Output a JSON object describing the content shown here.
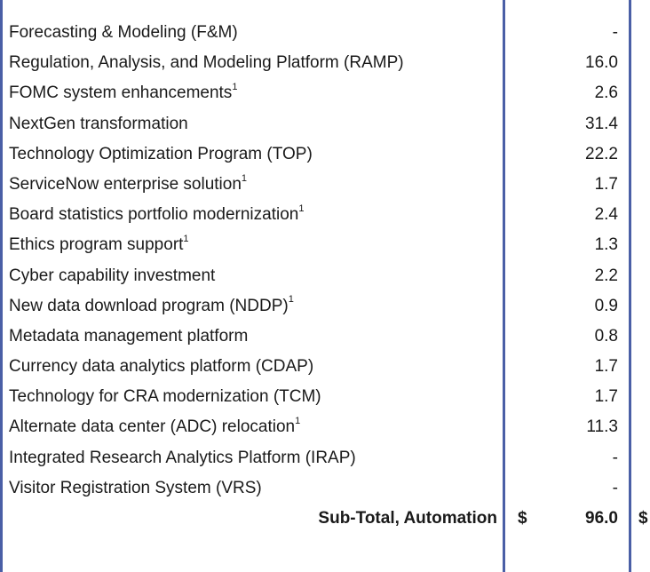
{
  "rows": [
    {
      "label": "Forecasting & Modeling (F&M)",
      "sup": "",
      "value": "-"
    },
    {
      "label": "Regulation, Analysis, and Modeling Platform (RAMP)",
      "sup": "",
      "value": "16.0"
    },
    {
      "label": "FOMC system enhancements",
      "sup": "1",
      "value": "2.6"
    },
    {
      "label": "NextGen transformation",
      "sup": "",
      "value": "31.4"
    },
    {
      "label": "Technology Optimization Program (TOP)",
      "sup": "",
      "value": "22.2"
    },
    {
      "label": "ServiceNow enterprise solution",
      "sup": "1",
      "value": "1.7"
    },
    {
      "label": "Board statistics portfolio modernization",
      "sup": "1",
      "value": "2.4"
    },
    {
      "label": "Ethics program support",
      "sup": "1",
      "value": "1.3"
    },
    {
      "label": "Cyber capability investment",
      "sup": "",
      "value": "2.2"
    },
    {
      "label": "New data download program (NDDP)",
      "sup": "1",
      "value": "0.9"
    },
    {
      "label": "Metadata management platform",
      "sup": "",
      "value": "0.8"
    },
    {
      "label": "Currency data analytics platform (CDAP)",
      "sup": "",
      "value": "1.7"
    },
    {
      "label": "Technology for CRA modernization (TCM)",
      "sup": "",
      "value": "1.7"
    },
    {
      "label": "Alternate data center (ADC) relocation",
      "sup": "1",
      "value": "11.3"
    },
    {
      "label": "Integrated Research Analytics Platform (IRAP)",
      "sup": "",
      "value": "-"
    },
    {
      "label": "Visitor Registration System (VRS)",
      "sup": "",
      "value": "-"
    }
  ],
  "total": {
    "label": "Sub-Total, Automation",
    "currency": "$",
    "value": "96.0",
    "next_currency": "$"
  },
  "colors": {
    "rule": "#4a5fa6",
    "text": "#1a1a1a"
  }
}
